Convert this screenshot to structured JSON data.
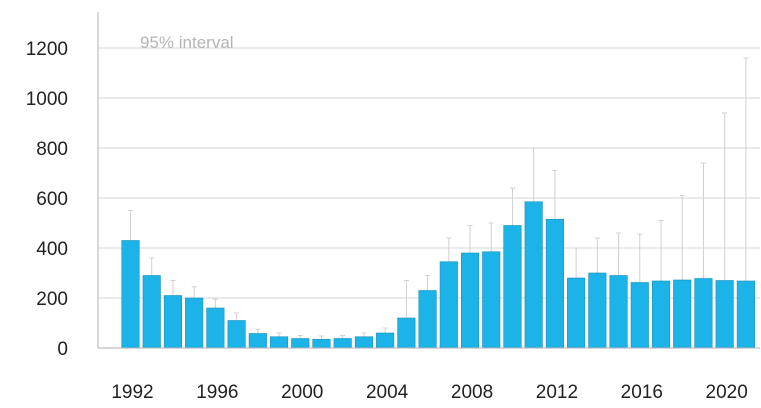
{
  "chart_data": {
    "type": "bar",
    "title": "",
    "xlabel": "",
    "ylabel": "",
    "annotation": "95% interval",
    "x": [
      1992,
      1993,
      1994,
      1995,
      1996,
      1997,
      1998,
      1999,
      2000,
      2001,
      2002,
      2003,
      2004,
      2005,
      2006,
      2007,
      2008,
      2009,
      2010,
      2011,
      2012,
      2013,
      2014,
      2015,
      2016,
      2017,
      2018,
      2019,
      2020,
      2021
    ],
    "x_tick_labels": [
      "1992",
      "1996",
      "2000",
      "2004",
      "2008",
      "2012",
      "2016",
      "2020"
    ],
    "y_tick_labels": [
      "0",
      "200",
      "400",
      "600",
      "800",
      "1000",
      "1200"
    ],
    "ylim": [
      0,
      1200
    ],
    "grid": "horizontal",
    "series": [
      {
        "values": [
          430,
          290,
          210,
          200,
          160,
          110,
          58,
          45,
          38,
          35,
          38,
          45,
          60,
          120,
          230,
          345,
          380,
          385,
          490,
          585,
          515,
          280,
          300,
          290,
          262,
          268,
          272,
          278,
          270,
          268
        ],
        "interval_upper": [
          550,
          360,
          270,
          245,
          195,
          140,
          75,
          60,
          50,
          48,
          50,
          60,
          80,
          270,
          290,
          440,
          490,
          500,
          640,
          800,
          710,
          400,
          440,
          460,
          455,
          510,
          610,
          740,
          940,
          1160
        ],
        "color": "#1cb4e8"
      }
    ],
    "colors": {
      "bar": "#1cb4e8",
      "bar_edge": "#1a8fb8",
      "error_bar": "#d0d0d0",
      "grid": "#d4d4d4",
      "axis": "#b0b0b0"
    }
  }
}
